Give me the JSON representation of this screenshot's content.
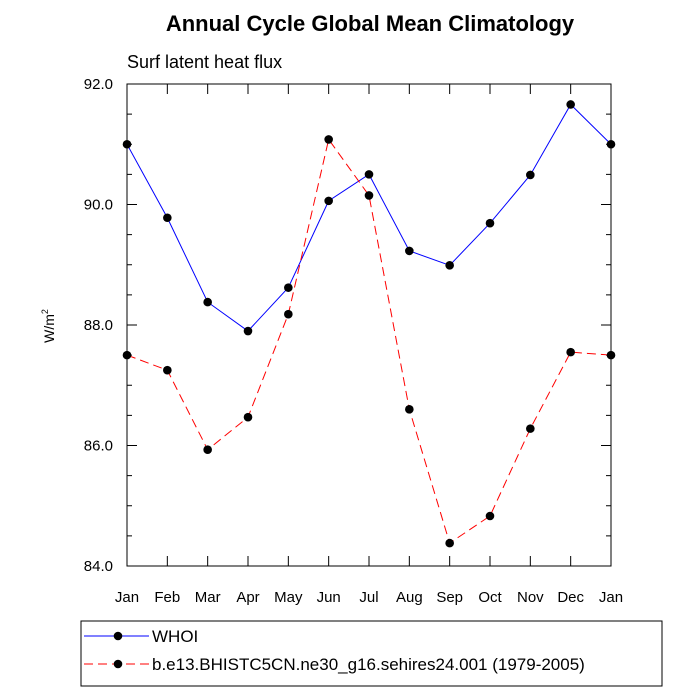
{
  "chart_data": {
    "type": "line",
    "title": "Annual Cycle Global Mean Climatology",
    "subtitle": "Surf latent heat flux",
    "xlabel": "",
    "ylabel_base": "W/m",
    "ylabel_sup": "2",
    "categories": [
      "Jan",
      "Feb",
      "Mar",
      "Apr",
      "May",
      "Jun",
      "Jul",
      "Aug",
      "Sep",
      "Oct",
      "Nov",
      "Dec",
      "Jan"
    ],
    "ylim": [
      84.0,
      92.0
    ],
    "yticks": [
      84.0,
      86.0,
      88.0,
      90.0,
      92.0
    ],
    "ytick_labels": [
      "84.0",
      "86.0",
      "88.0",
      "90.0",
      "92.0"
    ],
    "grid": false,
    "legend_position": "bottom",
    "series": [
      {
        "name": "WHOI",
        "color": "#0000ff",
        "line_style": "solid",
        "marker": "filled-circle",
        "values": [
          91.0,
          89.78,
          88.38,
          87.9,
          88.62,
          90.06,
          90.5,
          89.23,
          88.99,
          89.69,
          90.49,
          91.66,
          91.0
        ]
      },
      {
        "name": "b.e13.BHISTC5CN.ne30_g16.sehires24.001 (1979-2005)",
        "color": "#ff0000",
        "line_style": "dashed",
        "marker": "filled-circle",
        "values": [
          87.5,
          87.25,
          85.93,
          86.47,
          88.18,
          91.08,
          90.15,
          86.6,
          84.38,
          84.83,
          86.28,
          87.55,
          87.5
        ]
      }
    ]
  }
}
